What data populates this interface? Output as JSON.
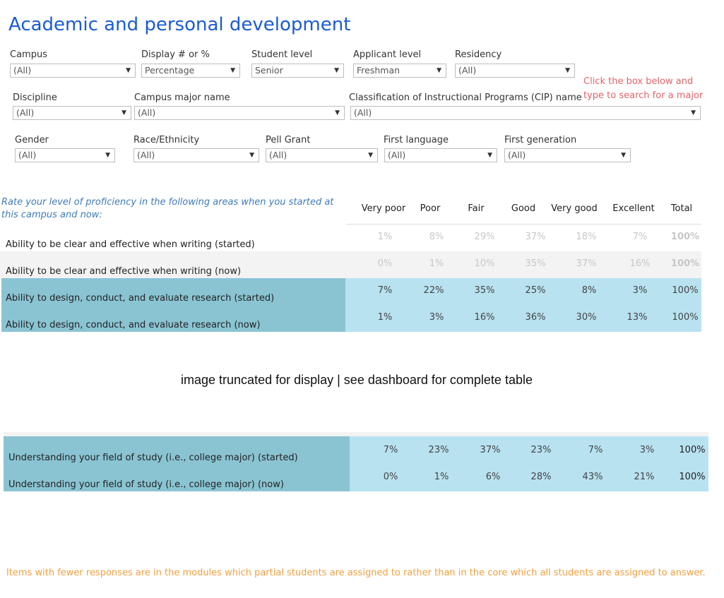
{
  "title": "Academic and personal development",
  "filters_row1": [
    {
      "label": "Campus",
      "value": "(All)"
    },
    {
      "label": "Display # or %",
      "value": "Percentage"
    },
    {
      "label": "Student level",
      "value": "Senior"
    },
    {
      "label": "Applicant level",
      "value": "Freshman"
    },
    {
      "label": "Residency",
      "value": "(All)"
    }
  ],
  "filters_row2": [
    {
      "label": "Discipline",
      "value": "(All)"
    },
    {
      "label": "Campus major name",
      "value": "(All)"
    },
    {
      "label": "Classification of Instructional Programs (CIP) name",
      "value": "(All)"
    }
  ],
  "filters_row3": [
    {
      "label": "Gender",
      "value": "(All)"
    },
    {
      "label": "Race/Ethnicity",
      "value": "(All)"
    },
    {
      "label": "Pell Grant",
      "value": "(All)"
    },
    {
      "label": "First language",
      "value": "(All)"
    },
    {
      "label": "First generation",
      "value": "(All)"
    }
  ],
  "hint": {
    "line1": "Click the box below and",
    "line2": "type to search for a major"
  },
  "table": {
    "question": "Rate your level of proficiency in the following areas when you started at this campus and now:",
    "columns": [
      "Very poor",
      "Poor",
      "Fair",
      "Good",
      "Very good",
      "Excellent",
      "Total"
    ],
    "rows_top": [
      {
        "label": "Ability to be clear and effective when writing (started)",
        "values": [
          "1%",
          "8%",
          "29%",
          "37%",
          "18%",
          "7%",
          "100%"
        ]
      },
      {
        "label": "Ability to be clear and effective when writing (now)",
        "values": [
          "0%",
          "1%",
          "10%",
          "35%",
          "37%",
          "16%",
          "100%"
        ]
      },
      {
        "label": "Ability to design, conduct, and evaluate research (started)",
        "values": [
          "7%",
          "22%",
          "35%",
          "25%",
          "8%",
          "3%",
          "100%"
        ]
      },
      {
        "label": "Ability to design, conduct, and evaluate research (now)",
        "values": [
          "1%",
          "3%",
          "16%",
          "36%",
          "30%",
          "13%",
          "100%"
        ]
      }
    ],
    "rows_bottom": [
      {
        "label": "Understanding your field of study (i.e., college major) (started)",
        "values": [
          "7%",
          "23%",
          "37%",
          "23%",
          "7%",
          "3%",
          "100%"
        ]
      },
      {
        "label": "Understanding your field of study (i.e., college major) (now)",
        "values": [
          "0%",
          "1%",
          "6%",
          "28%",
          "43%",
          "21%",
          "100%"
        ]
      }
    ]
  },
  "truncation_notice": "image truncated for display | see dashboard for complete table",
  "footnote": "Items with fewer responses are in the modules which partial students are assigned to rather than in the core which all students are assigned to answer.",
  "colors": {
    "title": "#1a5bd6",
    "highlight_label": "#8ac4d3",
    "highlight_cell": "#b8e2f0",
    "hint": "#e1656b",
    "footnote": "#f0a040"
  }
}
